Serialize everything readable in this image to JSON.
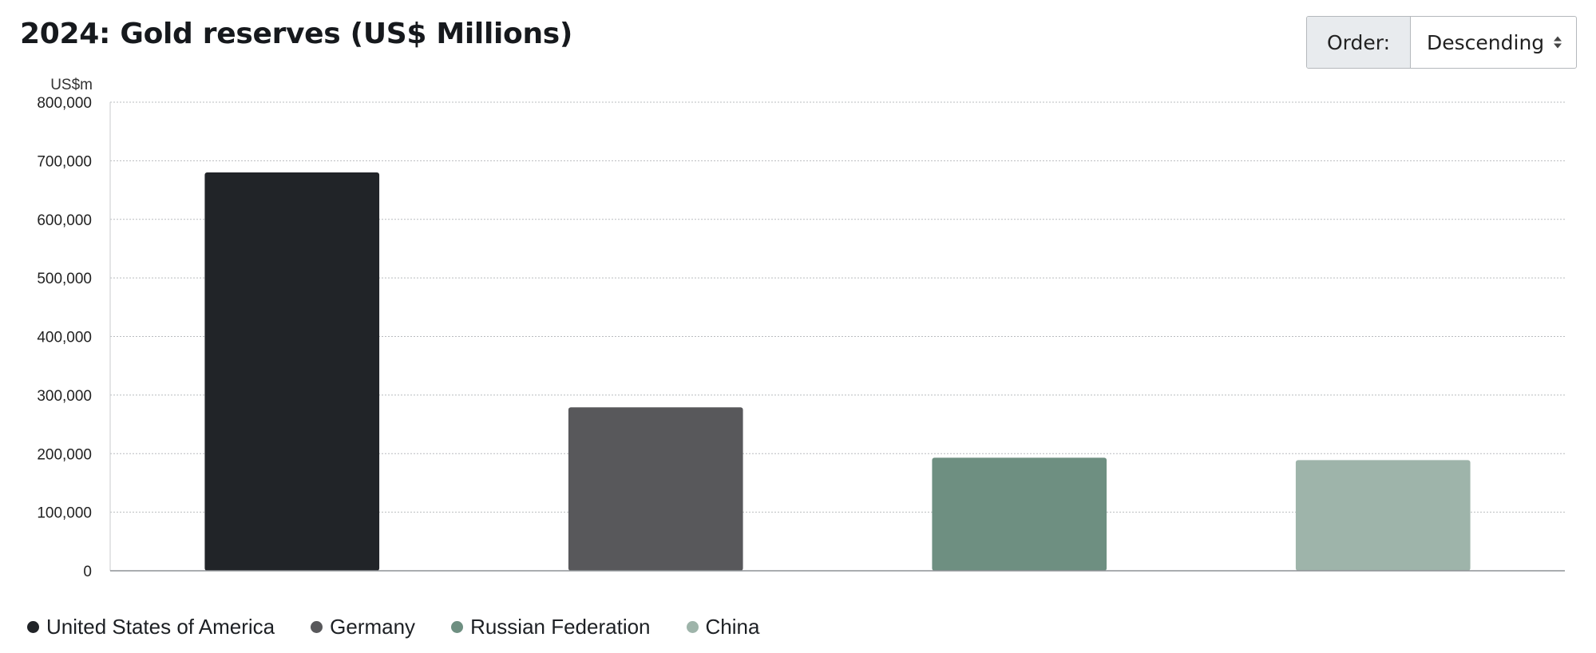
{
  "order": {
    "label": "Order:",
    "selected": "Descending"
  },
  "chart_data": {
    "type": "bar",
    "title": "2024: Gold reserves (US$ Millions)",
    "unit_label": "US$m",
    "xlabel": "",
    "ylabel": "US$m",
    "ylim": [
      0,
      800000
    ],
    "yticks": [
      0,
      100000,
      200000,
      300000,
      400000,
      500000,
      600000,
      700000,
      800000
    ],
    "ytick_labels": [
      "0",
      "100,000",
      "200,000",
      "300,000",
      "400,000",
      "500,000",
      "600,000",
      "700,000",
      "800,000"
    ],
    "grid": true,
    "legend_position": "bottom-left",
    "categories": [
      "United States of America",
      "Germany",
      "Russian Federation",
      "China"
    ],
    "values": [
      680000,
      279000,
      193000,
      189000
    ],
    "colors": [
      "#212428",
      "#58585b",
      "#6e8f81",
      "#9eb4aa"
    ]
  }
}
